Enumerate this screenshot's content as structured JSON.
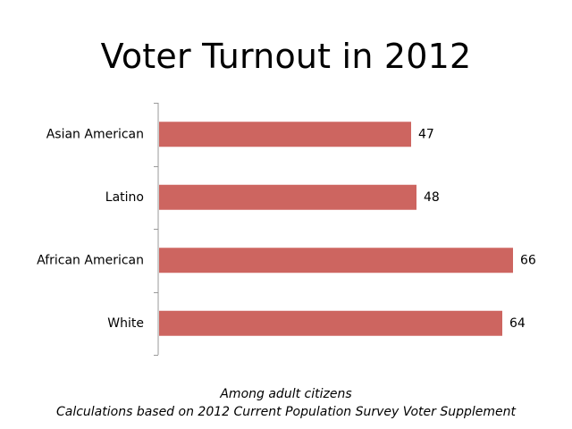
{
  "chart_data": {
    "type": "bar",
    "orientation": "horizontal",
    "title": "Voter Turnout in 2012",
    "categories": [
      "Asian American",
      "Latino",
      "African American",
      "White"
    ],
    "values": [
      47,
      48,
      66,
      64
    ],
    "xlabel": "",
    "ylabel": "",
    "xlim": [
      0,
      70
    ],
    "grid": false,
    "bar_color": "#cd6560",
    "data_labels": true,
    "notes": [
      "Among adult citizens",
      "Calculations based on 2012 Current Population Survey Voter Supplement"
    ]
  }
}
